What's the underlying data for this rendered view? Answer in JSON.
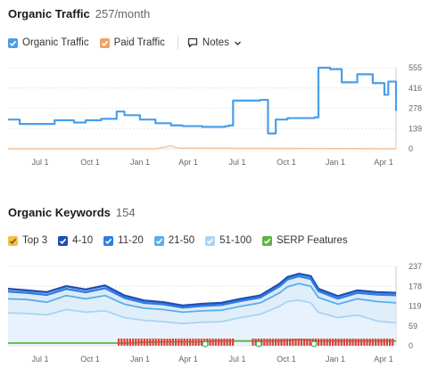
{
  "traffic": {
    "title": "Organic Traffic",
    "value": "257/month",
    "legend": {
      "organic": "Organic Traffic",
      "paid": "Paid Traffic",
      "notes": "Notes"
    }
  },
  "keywords": {
    "title": "Organic Keywords",
    "value": "154",
    "legend": [
      {
        "label": "Top 3",
        "color": "#f5c04a"
      },
      {
        "label": "4-10",
        "color": "#1f4fb5"
      },
      {
        "label": "11-20",
        "color": "#2f7de1"
      },
      {
        "label": "21-50",
        "color": "#5aaee9"
      },
      {
        "label": "51-100",
        "color": "#a8d4f5"
      },
      {
        "label": "SERP Features",
        "color": "#5db440"
      }
    ]
  },
  "colors": {
    "organic": "#4a9ee8",
    "paid": "#f4a261",
    "serp_marks": "#e0403a",
    "google_marks": "#34a853"
  },
  "chart_data": [
    {
      "type": "line",
      "title": "Organic Traffic",
      "x_ticks": [
        "Jul 1",
        "Oct 1",
        "Jan 1",
        "Apr 1",
        "Jul 1",
        "Oct 1",
        "Jan 1",
        "Apr 1"
      ],
      "y_ticks": [
        "555",
        "416",
        "278",
        "139",
        "0"
      ],
      "ylim": [
        0,
        555
      ],
      "grid": true,
      "series": [
        {
          "name": "Organic Traffic",
          "x": [
            0,
            0.03,
            0.06,
            0.12,
            0.17,
            0.2,
            0.24,
            0.28,
            0.3,
            0.34,
            0.38,
            0.42,
            0.45,
            0.5,
            0.56,
            0.57,
            0.58,
            0.65,
            0.67,
            0.69,
            0.72,
            0.74,
            0.79,
            0.8,
            0.83,
            0.86,
            0.9,
            0.94,
            0.97,
            0.98,
            1.0
          ],
          "values": [
            200,
            170,
            170,
            195,
            180,
            195,
            205,
            255,
            230,
            200,
            175,
            160,
            155,
            150,
            155,
            160,
            330,
            335,
            105,
            200,
            210,
            210,
            215,
            555,
            545,
            455,
            510,
            450,
            370,
            460,
            260
          ]
        },
        {
          "name": "Paid Traffic",
          "x": [
            0,
            0.38,
            0.4,
            0.42,
            0.44,
            1.0
          ],
          "values": [
            0,
            0,
            10,
            20,
            5,
            0
          ]
        }
      ]
    },
    {
      "type": "area",
      "title": "Organic Keywords",
      "x_ticks": [
        "Jul 1",
        "Oct 1",
        "Jan 1",
        "Apr 1",
        "Jul 1",
        "Oct 1",
        "Jan 1",
        "Apr 1"
      ],
      "y_ticks": [
        "237",
        "178",
        "119",
        "59",
        "0"
      ],
      "ylim": [
        0,
        237
      ],
      "grid": true,
      "x": [
        0,
        0.05,
        0.1,
        0.15,
        0.2,
        0.25,
        0.3,
        0.35,
        0.4,
        0.45,
        0.5,
        0.55,
        0.6,
        0.65,
        0.7,
        0.72,
        0.75,
        0.78,
        0.8,
        0.85,
        0.9,
        0.95,
        1.0
      ],
      "series": [
        {
          "name": "4-10",
          "values": [
            170,
            165,
            160,
            178,
            168,
            180,
            150,
            135,
            130,
            120,
            125,
            128,
            140,
            150,
            185,
            205,
            215,
            208,
            170,
            148,
            165,
            160,
            158
          ]
        },
        {
          "name": "11-20",
          "values": [
            162,
            158,
            152,
            170,
            160,
            172,
            143,
            128,
            124,
            114,
            119,
            122,
            134,
            144,
            178,
            198,
            208,
            200,
            163,
            141,
            158,
            153,
            151
          ]
        },
        {
          "name": "21-50",
          "values": [
            140,
            138,
            130,
            150,
            140,
            150,
            124,
            112,
            108,
            100,
            104,
            106,
            118,
            128,
            158,
            176,
            186,
            178,
            144,
            124,
            140,
            132,
            128
          ]
        },
        {
          "name": "51-100",
          "values": [
            98,
            96,
            92,
            108,
            100,
            104,
            84,
            76,
            72,
            66,
            70,
            72,
            84,
            94,
            118,
            132,
            136,
            128,
            100,
            84,
            92,
            74,
            68
          ]
        },
        {
          "name": "SERP Features",
          "values": [
            8,
            8,
            8,
            8,
            8,
            8,
            8,
            10,
            12,
            12,
            12,
            14,
            14,
            14,
            14,
            16,
            18,
            16,
            14,
            14,
            14,
            14,
            14
          ]
        }
      ]
    }
  ]
}
